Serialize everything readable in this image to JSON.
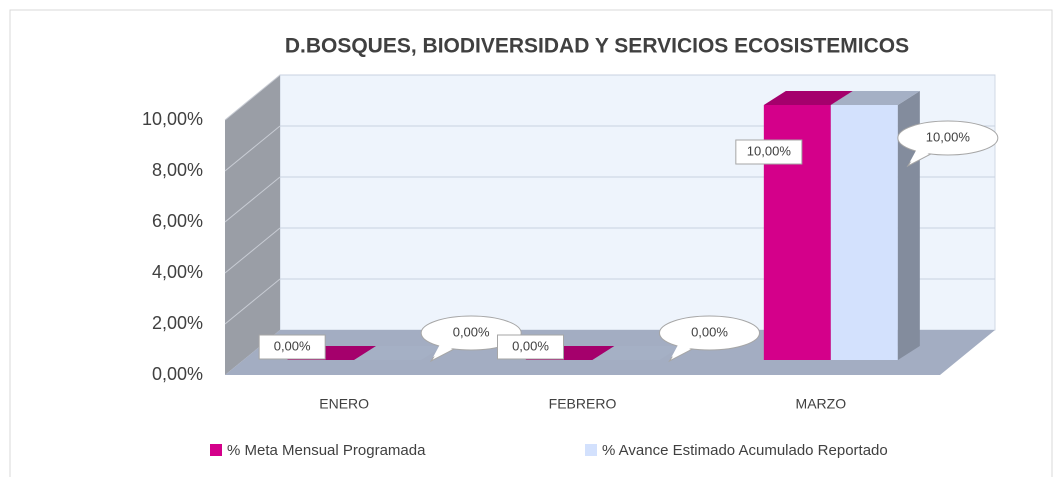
{
  "chart_data": {
    "type": "bar3d",
    "title": "D.BOSQUES, BIODIVERSIDAD Y SERVICIOS ECOSISTEMICOS",
    "categories": [
      "ENERO",
      "FEBRERO",
      "MARZO"
    ],
    "series": [
      {
        "name": "% Meta Mensual Programada",
        "color": "#d4008a",
        "values": [
          0,
          0,
          10
        ],
        "value_labels": [
          "0,00%",
          "0,00%",
          "10,00%"
        ]
      },
      {
        "name": "% Avance Estimado Acumulado Reportado",
        "color": "#d3e1fd",
        "values": [
          0,
          0,
          10
        ],
        "value_labels": [
          "0,00%",
          "0,00%",
          "10,00%"
        ]
      }
    ],
    "ylim": [
      0,
      10
    ],
    "yticks": [
      {
        "value": 0,
        "label": "0,00%"
      },
      {
        "value": 2,
        "label": "2,00%"
      },
      {
        "value": 4,
        "label": "4,00%"
      },
      {
        "value": 6,
        "label": "6,00%"
      },
      {
        "value": 8,
        "label": "8,00%"
      },
      {
        "value": 10,
        "label": "10,00%"
      }
    ],
    "grid": true,
    "legend": "bottom"
  }
}
